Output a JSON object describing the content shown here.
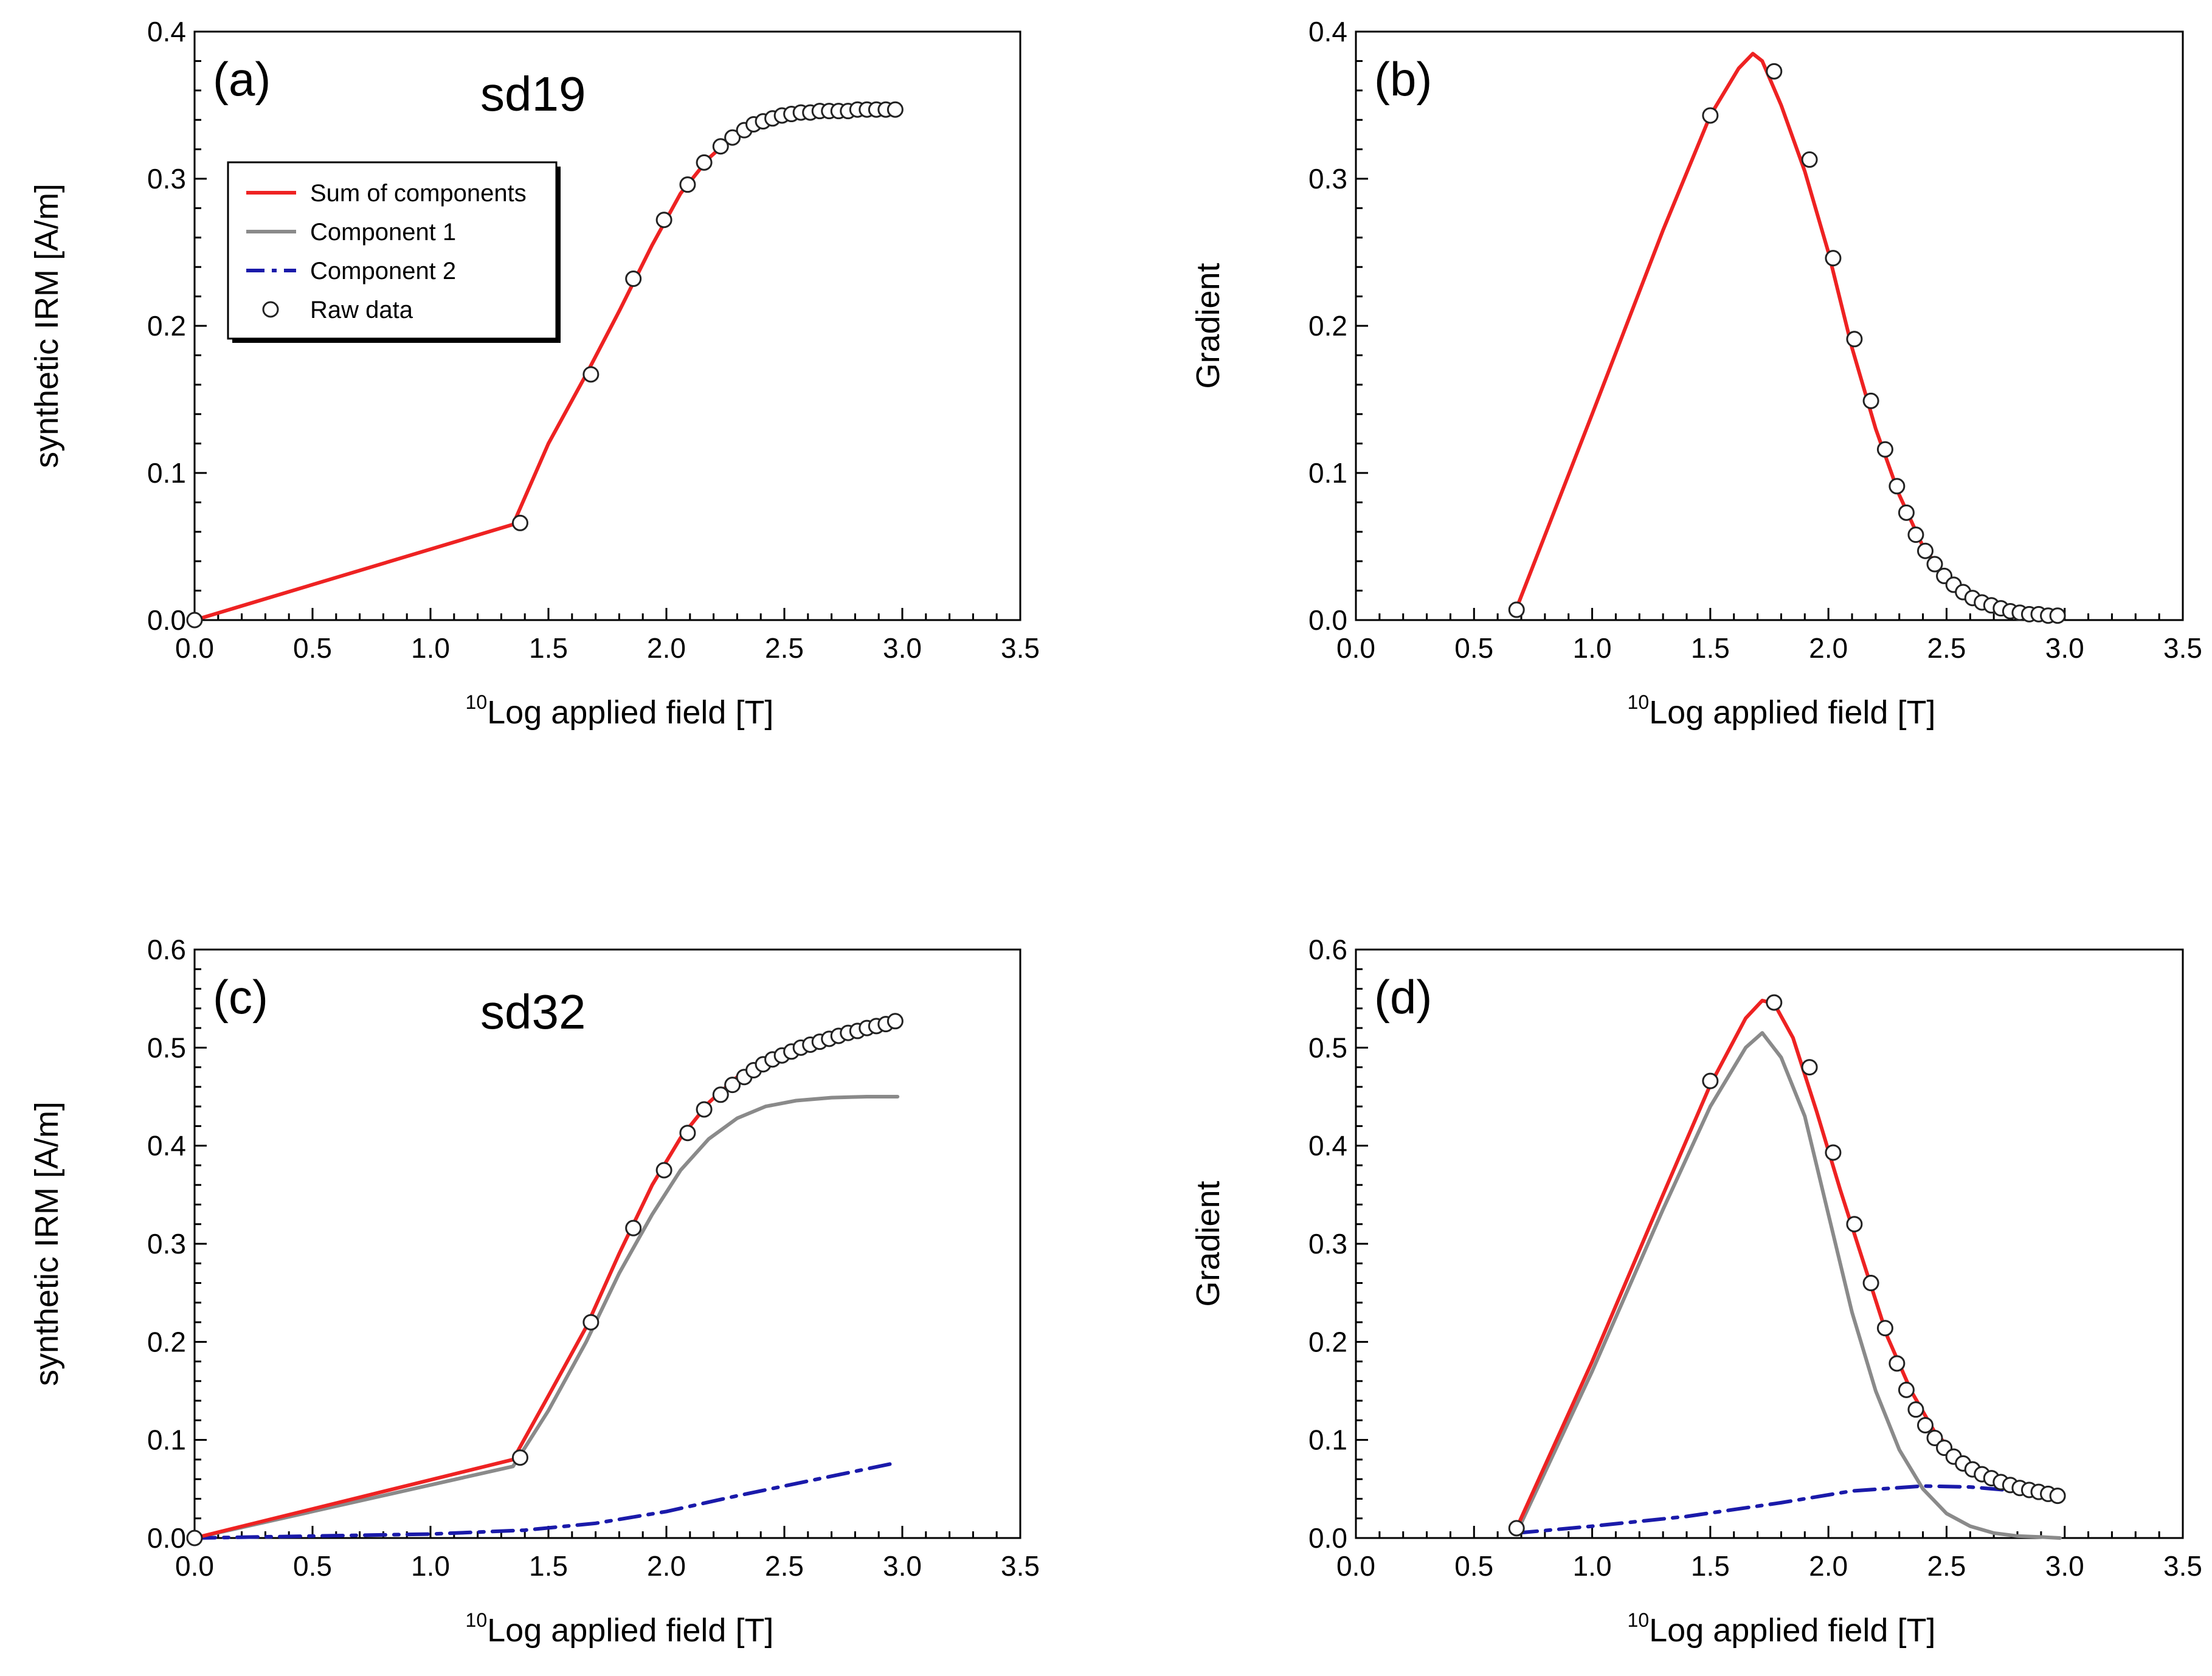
{
  "colors": {
    "sum": "#ee2222",
    "comp1": "#8a8a8a",
    "comp2": "#1a1aaa",
    "marker_fill": "#ffffff",
    "marker_stroke": "#222222",
    "axis": "#000000"
  },
  "legend": {
    "items": [
      {
        "label": "Sum of components",
        "style": "sum"
      },
      {
        "label": "Component 1",
        "style": "comp1"
      },
      {
        "label": "Component 2",
        "style": "comp2"
      },
      {
        "label": "Raw data",
        "style": "raw"
      }
    ]
  },
  "chart_data": [
    {
      "id": "a",
      "panel_letter": "(a)",
      "sample": "sd19",
      "type": "line",
      "xlabel_sup": "10",
      "xlabel": "Log applied field [T]",
      "ylabel": "synthetic IRM [A/m]",
      "xlim": [
        0.0,
        3.5
      ],
      "ylim": [
        0.0,
        0.4
      ],
      "xticks": [
        "0.0",
        "0.5",
        "1.0",
        "1.5",
        "2.0",
        "2.5",
        "3.0",
        "3.5"
      ],
      "yticks": [
        "0.0",
        "0.1",
        "0.2",
        "0.3",
        "0.4"
      ],
      "legend": true,
      "series": [
        {
          "name": "Sum of components",
          "style": "sum",
          "x": [
            0.0,
            1.35,
            1.5,
            1.66,
            1.8,
            1.94,
            2.06,
            2.18,
            2.3,
            2.42,
            2.55,
            2.7,
            2.85,
            2.98
          ],
          "y": [
            0.0,
            0.065,
            0.12,
            0.167,
            0.21,
            0.255,
            0.29,
            0.314,
            0.331,
            0.339,
            0.344,
            0.346,
            0.347,
            0.347
          ]
        },
        {
          "name": "Raw data",
          "style": "raw",
          "x": [
            0.0,
            1.38,
            1.68,
            1.86,
            1.99,
            2.09,
            2.16,
            2.23,
            2.28,
            2.33,
            2.37,
            2.41,
            2.45,
            2.49,
            2.53,
            2.57,
            2.61,
            2.65,
            2.69,
            2.73,
            2.77,
            2.81,
            2.85,
            2.89,
            2.93,
            2.97
          ],
          "y": [
            0.0,
            0.066,
            0.167,
            0.232,
            0.272,
            0.296,
            0.311,
            0.322,
            0.328,
            0.333,
            0.337,
            0.339,
            0.341,
            0.343,
            0.344,
            0.345,
            0.345,
            0.346,
            0.346,
            0.346,
            0.346,
            0.347,
            0.347,
            0.347,
            0.347,
            0.347
          ]
        }
      ]
    },
    {
      "id": "b",
      "panel_letter": "(b)",
      "sample": "",
      "type": "line",
      "xlabel_sup": "10",
      "xlabel": "Log applied field [T]",
      "ylabel": "Gradient",
      "xlim": [
        0.0,
        3.5
      ],
      "ylim": [
        0.0,
        0.4
      ],
      "xticks": [
        "0.0",
        "0.5",
        "1.0",
        "1.5",
        "2.0",
        "2.5",
        "3.0",
        "3.5"
      ],
      "yticks": [
        "0.0",
        "0.1",
        "0.2",
        "0.3",
        "0.4"
      ],
      "legend": false,
      "series": [
        {
          "name": "Sum of components",
          "style": "sum",
          "x": [
            0.68,
            1.0,
            1.3,
            1.5,
            1.62,
            1.68,
            1.72,
            1.8,
            1.9,
            2.0,
            2.1,
            2.2,
            2.3,
            2.4,
            2.5,
            2.6,
            2.7,
            2.8,
            2.9,
            2.98
          ],
          "y": [
            0.008,
            0.14,
            0.265,
            0.343,
            0.375,
            0.385,
            0.38,
            0.35,
            0.305,
            0.25,
            0.185,
            0.13,
            0.085,
            0.05,
            0.028,
            0.015,
            0.008,
            0.004,
            0.003,
            0.003
          ]
        },
        {
          "name": "Raw data",
          "style": "raw",
          "x": [
            0.68,
            1.5,
            1.77,
            1.92,
            2.02,
            2.11,
            2.18,
            2.24,
            2.29,
            2.33,
            2.37,
            2.41,
            2.45,
            2.49,
            2.53,
            2.57,
            2.61,
            2.65,
            2.69,
            2.73,
            2.77,
            2.81,
            2.85,
            2.89,
            2.93,
            2.97
          ],
          "y": [
            0.007,
            0.343,
            0.373,
            0.313,
            0.246,
            0.191,
            0.149,
            0.116,
            0.091,
            0.073,
            0.058,
            0.047,
            0.038,
            0.03,
            0.024,
            0.019,
            0.015,
            0.012,
            0.01,
            0.008,
            0.006,
            0.005,
            0.004,
            0.004,
            0.003,
            0.003
          ]
        }
      ]
    },
    {
      "id": "c",
      "panel_letter": "(c)",
      "sample": "sd32",
      "type": "line",
      "xlabel_sup": "10",
      "xlabel": "Log applied field [T]",
      "ylabel": "synthetic IRM [A/m]",
      "xlim": [
        0.0,
        3.5
      ],
      "ylim": [
        0.0,
        0.6
      ],
      "xticks": [
        "0.0",
        "0.5",
        "1.0",
        "1.5",
        "2.0",
        "2.5",
        "3.0",
        "3.5"
      ],
      "yticks": [
        "0.0",
        "0.1",
        "0.2",
        "0.3",
        "0.4",
        "0.5",
        "0.6"
      ],
      "legend": false,
      "series": [
        {
          "name": "Component 1",
          "style": "comp1",
          "x": [
            0.0,
            1.35,
            1.5,
            1.66,
            1.8,
            1.94,
            2.06,
            2.18,
            2.3,
            2.42,
            2.55,
            2.7,
            2.85,
            2.98
          ],
          "y": [
            0.0,
            0.073,
            0.13,
            0.2,
            0.27,
            0.33,
            0.375,
            0.407,
            0.428,
            0.44,
            0.446,
            0.449,
            0.45,
            0.45
          ]
        },
        {
          "name": "Component 2",
          "style": "comp2",
          "x": [
            0.0,
            0.5,
            1.0,
            1.4,
            1.7,
            2.0,
            2.3,
            2.6,
            2.98
          ],
          "y": [
            0.0,
            0.002,
            0.004,
            0.008,
            0.015,
            0.027,
            0.043,
            0.058,
            0.077
          ]
        },
        {
          "name": "Sum of components",
          "style": "sum",
          "x": [
            0.0,
            1.35,
            1.5,
            1.66,
            1.8,
            1.94,
            2.06,
            2.18,
            2.3,
            2.42,
            2.55,
            2.7,
            2.85,
            2.98
          ],
          "y": [
            0.0,
            0.08,
            0.145,
            0.215,
            0.29,
            0.36,
            0.408,
            0.444,
            0.47,
            0.487,
            0.5,
            0.512,
            0.52,
            0.527
          ]
        },
        {
          "name": "Raw data",
          "style": "raw",
          "x": [
            0.0,
            1.38,
            1.68,
            1.86,
            1.99,
            2.09,
            2.16,
            2.23,
            2.28,
            2.33,
            2.37,
            2.41,
            2.45,
            2.49,
            2.53,
            2.57,
            2.61,
            2.65,
            2.69,
            2.73,
            2.77,
            2.81,
            2.85,
            2.89,
            2.93,
            2.97
          ],
          "y": [
            0.0,
            0.082,
            0.22,
            0.316,
            0.375,
            0.413,
            0.437,
            0.452,
            0.462,
            0.47,
            0.477,
            0.483,
            0.488,
            0.492,
            0.496,
            0.5,
            0.503,
            0.506,
            0.509,
            0.512,
            0.515,
            0.517,
            0.52,
            0.522,
            0.524,
            0.527
          ]
        }
      ]
    },
    {
      "id": "d",
      "panel_letter": "(d)",
      "sample": "",
      "type": "line",
      "xlabel_sup": "10",
      "xlabel": "Log applied field [T]",
      "ylabel": "Gradient",
      "xlim": [
        0.0,
        3.5
      ],
      "ylim": [
        0.0,
        0.6
      ],
      "xticks": [
        "0.0",
        "0.5",
        "1.0",
        "1.5",
        "2.0",
        "2.5",
        "3.0",
        "3.5"
      ],
      "yticks": [
        "0.0",
        "0.1",
        "0.2",
        "0.3",
        "0.4",
        "0.5",
        "0.6"
      ],
      "legend": false,
      "series": [
        {
          "name": "Component 1",
          "style": "comp1",
          "x": [
            0.68,
            1.0,
            1.3,
            1.5,
            1.65,
            1.72,
            1.8,
            1.9,
            2.0,
            2.1,
            2.2,
            2.3,
            2.4,
            2.5,
            2.6,
            2.7,
            2.8,
            2.9,
            2.98
          ],
          "y": [
            0.005,
            0.17,
            0.335,
            0.44,
            0.5,
            0.515,
            0.49,
            0.43,
            0.33,
            0.23,
            0.15,
            0.09,
            0.05,
            0.025,
            0.012,
            0.005,
            0.002,
            0.001,
            0.0
          ]
        },
        {
          "name": "Component 2",
          "style": "comp2",
          "x": [
            0.68,
            1.0,
            1.4,
            1.8,
            2.1,
            2.4,
            2.6,
            2.8,
            2.98
          ],
          "y": [
            0.005,
            0.012,
            0.022,
            0.036,
            0.048,
            0.053,
            0.052,
            0.048,
            0.042
          ]
        },
        {
          "name": "Sum of components",
          "style": "sum",
          "x": [
            0.68,
            1.0,
            1.3,
            1.5,
            1.65,
            1.72,
            1.77,
            1.85,
            1.95,
            2.05,
            2.15,
            2.25,
            2.35,
            2.45,
            2.55,
            2.65,
            2.75,
            2.85,
            2.98
          ],
          "y": [
            0.01,
            0.18,
            0.35,
            0.462,
            0.53,
            0.548,
            0.545,
            0.51,
            0.435,
            0.355,
            0.28,
            0.205,
            0.15,
            0.108,
            0.082,
            0.066,
            0.055,
            0.048,
            0.042
          ]
        },
        {
          "name": "Raw data",
          "style": "raw",
          "x": [
            0.68,
            1.5,
            1.77,
            1.92,
            2.02,
            2.11,
            2.18,
            2.24,
            2.29,
            2.33,
            2.37,
            2.41,
            2.45,
            2.49,
            2.53,
            2.57,
            2.61,
            2.65,
            2.69,
            2.73,
            2.77,
            2.81,
            2.85,
            2.89,
            2.93,
            2.97
          ],
          "y": [
            0.01,
            0.466,
            0.546,
            0.48,
            0.393,
            0.32,
            0.26,
            0.214,
            0.178,
            0.151,
            0.131,
            0.115,
            0.102,
            0.092,
            0.083,
            0.076,
            0.07,
            0.065,
            0.061,
            0.057,
            0.054,
            0.051,
            0.049,
            0.047,
            0.045,
            0.043
          ]
        }
      ]
    }
  ]
}
